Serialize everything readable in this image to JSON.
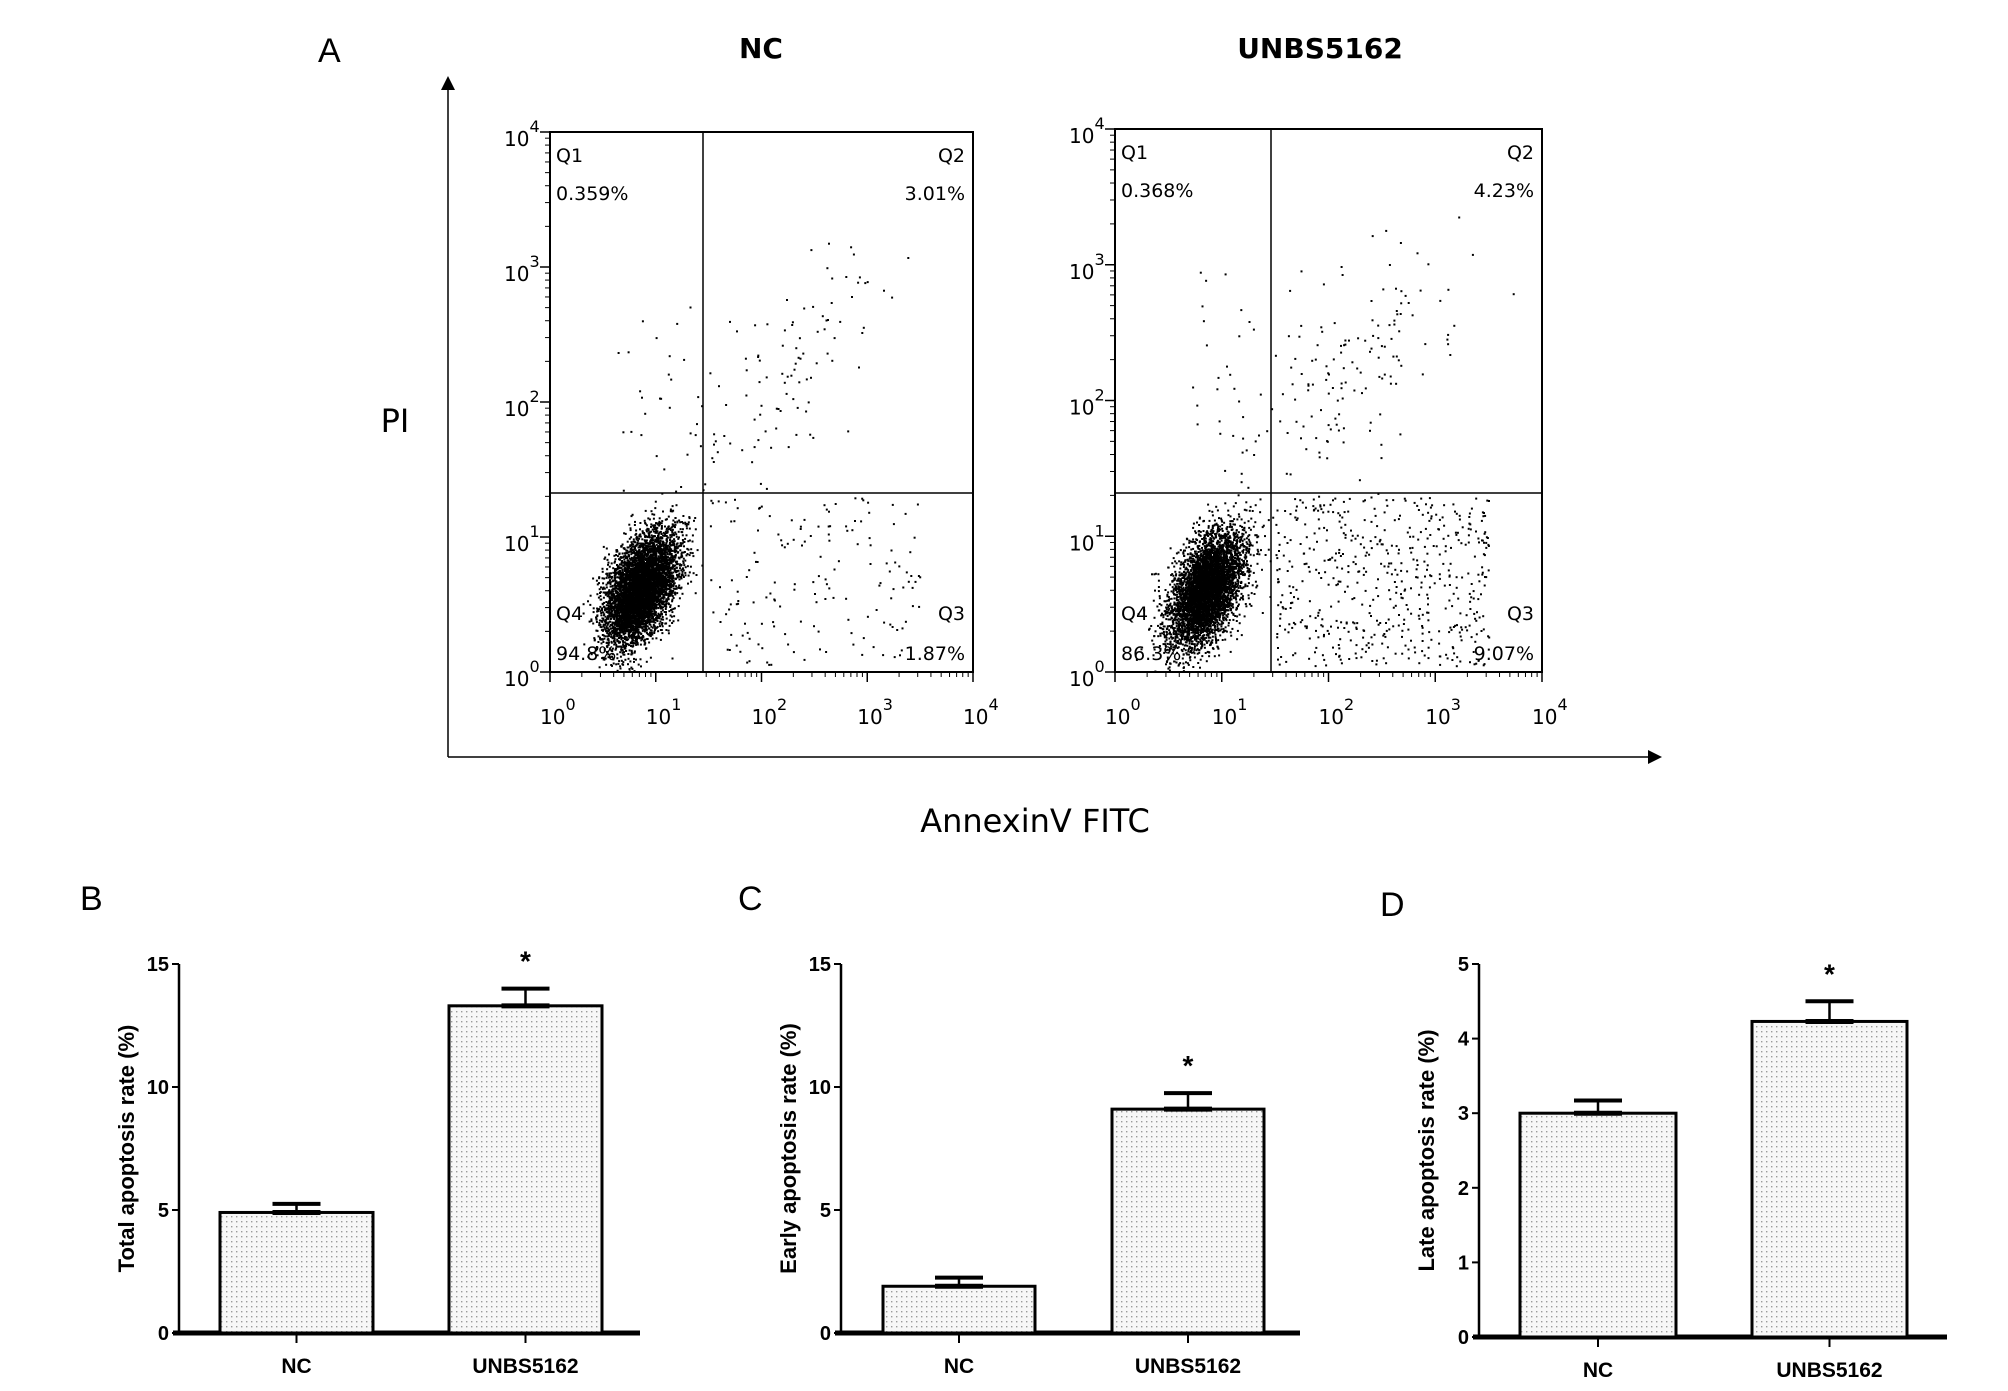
{
  "chart_data": [
    {
      "type": "scatter",
      "panel": "A",
      "titles": [
        "NC",
        "UNBS5162"
      ],
      "xlabel": "AnnexinV FITC",
      "ylabel": "PI",
      "x_scale": "log",
      "y_scale": "log",
      "xlim": [
        1,
        10000
      ],
      "ylim": [
        1,
        10000
      ],
      "tick_labels": [
        "10^0",
        "10^1",
        "10^2",
        "10^3",
        "10^4"
      ],
      "plots": [
        {
          "title": "NC",
          "quadrants": {
            "Q1": "0.359%",
            "Q2": "3.01%",
            "Q3": "1.87%",
            "Q4": "94.8%"
          }
        },
        {
          "title": "UNBS5162",
          "quadrants": {
            "Q1": "0.368%",
            "Q2": "4.23%",
            "Q3": "9.07%",
            "Q4": "86.3%"
          }
        }
      ]
    },
    {
      "type": "bar",
      "panel": "B",
      "categories": [
        "NC",
        "UNBS5162"
      ],
      "values": [
        4.9,
        13.3
      ],
      "errors": [
        0.35,
        0.7
      ],
      "significance": [
        "",
        "*"
      ],
      "ylabel": "Total apoptosis rate (%)",
      "ylim": [
        0,
        15
      ],
      "yticks": [
        0,
        5,
        10,
        15
      ]
    },
    {
      "type": "bar",
      "panel": "C",
      "categories": [
        "NC",
        "UNBS5162"
      ],
      "values": [
        1.9,
        9.1
      ],
      "errors": [
        0.35,
        0.65
      ],
      "significance": [
        "",
        "*"
      ],
      "ylabel": "Early apoptosis rate (%)",
      "ylim": [
        0,
        15
      ],
      "yticks": [
        0,
        5,
        10,
        15
      ]
    },
    {
      "type": "bar",
      "panel": "D",
      "categories": [
        "NC",
        "UNBS5162"
      ],
      "values": [
        3.0,
        4.23
      ],
      "errors": [
        0.17,
        0.27
      ],
      "significance": [
        "",
        "*"
      ],
      "ylabel": "Late apoptosis rate (%)",
      "ylim": [
        0,
        5
      ],
      "yticks": [
        0,
        1,
        2,
        3,
        4,
        5
      ]
    }
  ],
  "colors": {
    "ink": "#000000",
    "bar_fill": "#f2f2f2"
  }
}
